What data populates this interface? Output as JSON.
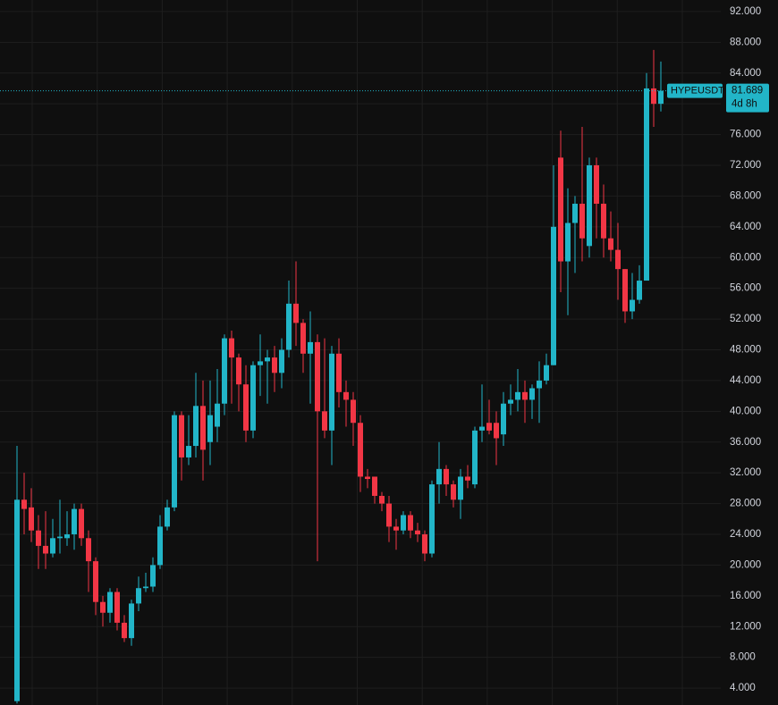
{
  "chart_data": {
    "type": "candlestick",
    "symbol": "HYPEUSDT",
    "countdown": "4d 8h",
    "up_color": "#22b5c8",
    "down_color": "#f23645",
    "grid": true,
    "ylim": [
      1.8,
      93.5
    ],
    "yticks": [
      {
        "value": 4,
        "label": "4.000"
      },
      {
        "value": 8,
        "label": "8.000"
      },
      {
        "value": 12,
        "label": "12.000"
      },
      {
        "value": 16,
        "label": "16.000"
      },
      {
        "value": 20,
        "label": "20.000"
      },
      {
        "value": 24,
        "label": "24.000"
      },
      {
        "value": 28,
        "label": "28.000"
      },
      {
        "value": 32,
        "label": "32.000"
      },
      {
        "value": 36,
        "label": "36.000"
      },
      {
        "value": 40,
        "label": "40.000"
      },
      {
        "value": 44,
        "label": "44.000"
      },
      {
        "value": 48,
        "label": "48.000"
      },
      {
        "value": 52,
        "label": "52.000"
      },
      {
        "value": 56,
        "label": "56.000"
      },
      {
        "value": 60,
        "label": "60.000"
      },
      {
        "value": 64,
        "label": "64.000"
      },
      {
        "value": 68,
        "label": "68.000"
      },
      {
        "value": 72,
        "label": "72.000"
      },
      {
        "value": 76,
        "label": "76.000"
      },
      {
        "value": 80,
        "label": "80.000"
      },
      {
        "value": 84,
        "label": "84.000"
      },
      {
        "value": 88,
        "label": "88.000"
      },
      {
        "value": 92,
        "label": "92.000"
      }
    ],
    "open": [
      2.3,
      28.5,
      27.5,
      24.5,
      22.5,
      21.5,
      23.5,
      23.5,
      24,
      27.3,
      23.5,
      20.5,
      15.2,
      13.8,
      16.5,
      12.5,
      10.5,
      15,
      17,
      17.2,
      20,
      25,
      27.5,
      39.5,
      34,
      35.5,
      40.7,
      36,
      38,
      41,
      49.5,
      47,
      43.5,
      37.5,
      46,
      46.5,
      47,
      45,
      48,
      54,
      51.5,
      47.5,
      49,
      40,
      37.5,
      47.5,
      42.5,
      41.5,
      38.5,
      31.5,
      31.5,
      29,
      28,
      25,
      24.5,
      26.5,
      24.5,
      24,
      21.5,
      30.5,
      32.5,
      30.5,
      28.5,
      31.5,
      30.5,
      37.5,
      38.5,
      38.5,
      37,
      41,
      41.5,
      42.5,
      41.5,
      43,
      44,
      46,
      73,
      59.5,
      64.5,
      67,
      61.5,
      72,
      67,
      62.5,
      61,
      58.5,
      53,
      54.5,
      57,
      82,
      80
    ],
    "high": [
      35.5,
      32,
      30,
      26.5,
      27,
      26,
      28.5,
      27,
      28,
      28,
      24.5,
      21,
      16,
      17,
      17,
      13.5,
      15.5,
      18.5,
      19,
      21,
      26.5,
      28.5,
      40,
      40,
      39.5,
      45,
      44,
      44,
      45.5,
      50,
      50.5,
      47.5,
      46,
      46.5,
      50,
      48,
      48.5,
      49.5,
      57,
      59.5,
      52,
      53,
      50,
      49.5,
      48.5,
      49.5,
      44,
      42.5,
      39.5,
      32.5,
      31.5,
      29.5,
      29,
      26,
      27,
      27,
      25.5,
      24.5,
      31,
      36,
      33,
      31,
      32.5,
      33,
      38,
      43.5,
      41.5,
      40,
      42.5,
      43.5,
      45.5,
      44,
      43.5,
      46.5,
      47.5,
      72,
      76.5,
      69,
      68,
      77,
      73,
      73,
      69.5,
      66,
      64.5,
      58.5,
      58,
      59,
      84,
      87,
      85.5
    ],
    "low": [
      2,
      24,
      23,
      19.5,
      19.5,
      21,
      21.5,
      22.5,
      22,
      22.5,
      16.5,
      13.5,
      12,
      12.5,
      11.5,
      10,
      9.5,
      14,
      16.5,
      16.5,
      19.5,
      24.5,
      27,
      31,
      33,
      34,
      31,
      33,
      36,
      39.5,
      41,
      40,
      36,
      36.5,
      42,
      41,
      42.5,
      43,
      47,
      48.5,
      45,
      41,
      20.5,
      36.5,
      33,
      40.5,
      38,
      35.5,
      29.5,
      30,
      28,
      27,
      23,
      22,
      24,
      23.5,
      23,
      20.5,
      21,
      28,
      29,
      27.5,
      26,
      30,
      30,
      36,
      37,
      33,
      35.5,
      39.5,
      40,
      38.5,
      39,
      38.5,
      43.5,
      46,
      55.5,
      52.5,
      58,
      59.5,
      60,
      62.5,
      60,
      59.5,
      54.5,
      51.5,
      52,
      54,
      57,
      77,
      79
    ],
    "close": [
      28.5,
      27.3,
      24.5,
      22.5,
      21.5,
      23.5,
      23.7,
      24,
      27.3,
      23.5,
      20.5,
      15.2,
      13.8,
      16.5,
      12.5,
      10.5,
      15,
      17,
      17.2,
      20,
      25,
      27.5,
      39.5,
      34,
      35.5,
      40.7,
      35,
      39.5,
      41,
      49.5,
      47,
      43.5,
      37.5,
      46,
      46.5,
      47,
      45,
      48,
      54,
      51.5,
      47.5,
      49,
      40,
      37.5,
      47.5,
      42.5,
      41.5,
      38.5,
      31.5,
      31.2,
      29,
      28,
      25,
      24.5,
      26.5,
      24.5,
      24,
      21.5,
      30.5,
      32.5,
      30.5,
      28.5,
      31.5,
      31,
      37.5,
      38,
      37.5,
      36.5,
      41,
      41.5,
      42.5,
      41.5,
      43,
      44,
      46,
      64,
      59.5,
      64.5,
      67,
      62.5,
      72,
      67,
      62.5,
      61,
      58.5,
      53,
      54.5,
      57,
      82,
      80,
      81.689
    ]
  }
}
